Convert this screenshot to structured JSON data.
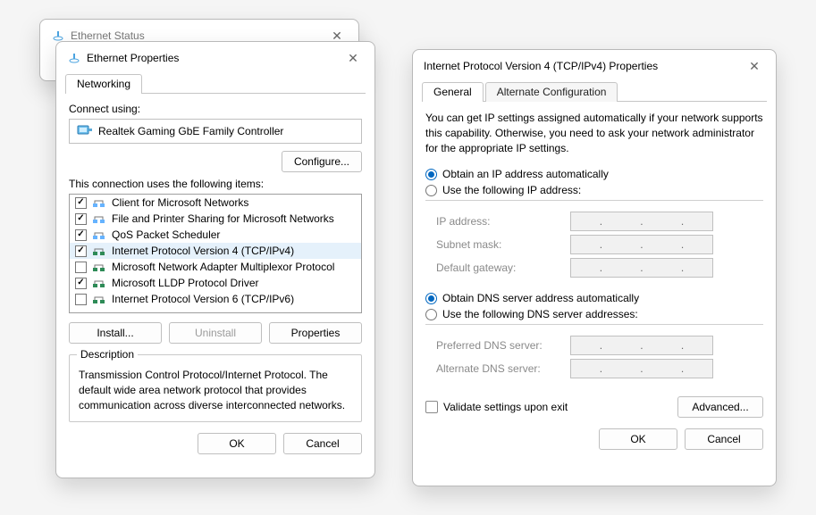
{
  "status_window": {
    "title": "Ethernet Status"
  },
  "props_window": {
    "title": "Ethernet Properties",
    "tab": "Networking",
    "connect_using_label": "Connect using:",
    "adapter_name": "Realtek Gaming GbE Family Controller",
    "configure_btn": "Configure...",
    "uses_label": "This connection uses the following items:",
    "items": [
      {
        "checked": true,
        "label": "Client for Microsoft Networks",
        "icon_color": "#66b3ff"
      },
      {
        "checked": true,
        "label": "File and Printer Sharing for Microsoft Networks",
        "icon_color": "#66b3ff"
      },
      {
        "checked": true,
        "label": "QoS Packet Scheduler",
        "icon_color": "#66b3ff"
      },
      {
        "checked": true,
        "label": "Internet Protocol Version 4 (TCP/IPv4)",
        "selected": true,
        "icon_color": "#2e8b57"
      },
      {
        "checked": false,
        "label": "Microsoft Network Adapter Multiplexor Protocol",
        "icon_color": "#2e8b57"
      },
      {
        "checked": true,
        "label": "Microsoft LLDP Protocol Driver",
        "icon_color": "#2e8b57"
      },
      {
        "checked": false,
        "label": "Internet Protocol Version 6 (TCP/IPv6)",
        "icon_color": "#2e8b57"
      }
    ],
    "install_btn": "Install...",
    "uninstall_btn": "Uninstall",
    "properties_btn": "Properties",
    "desc_legend": "Description",
    "desc_text": "Transmission Control Protocol/Internet Protocol. The default wide area network protocol that provides communication across diverse interconnected networks.",
    "ok_btn": "OK",
    "cancel_btn": "Cancel"
  },
  "ipv4_window": {
    "title": "Internet Protocol Version 4 (TCP/IPv4) Properties",
    "tabs": {
      "general": "General",
      "alt": "Alternate Configuration"
    },
    "intro": "You can get IP settings assigned automatically if your network supports this capability. Otherwise, you need to ask your network administrator for the appropriate IP settings.",
    "ip_auto": "Obtain an IP address automatically",
    "ip_manual": "Use the following IP address:",
    "ip_label": "IP address:",
    "mask_label": "Subnet mask:",
    "gw_label": "Default gateway:",
    "dns_auto": "Obtain DNS server address automatically",
    "dns_manual": "Use the following DNS server addresses:",
    "dns1_label": "Preferred DNS server:",
    "dns2_label": "Alternate DNS server:",
    "validate_label": "Validate settings upon exit",
    "advanced_btn": "Advanced...",
    "ok_btn": "OK",
    "cancel_btn": "Cancel"
  }
}
